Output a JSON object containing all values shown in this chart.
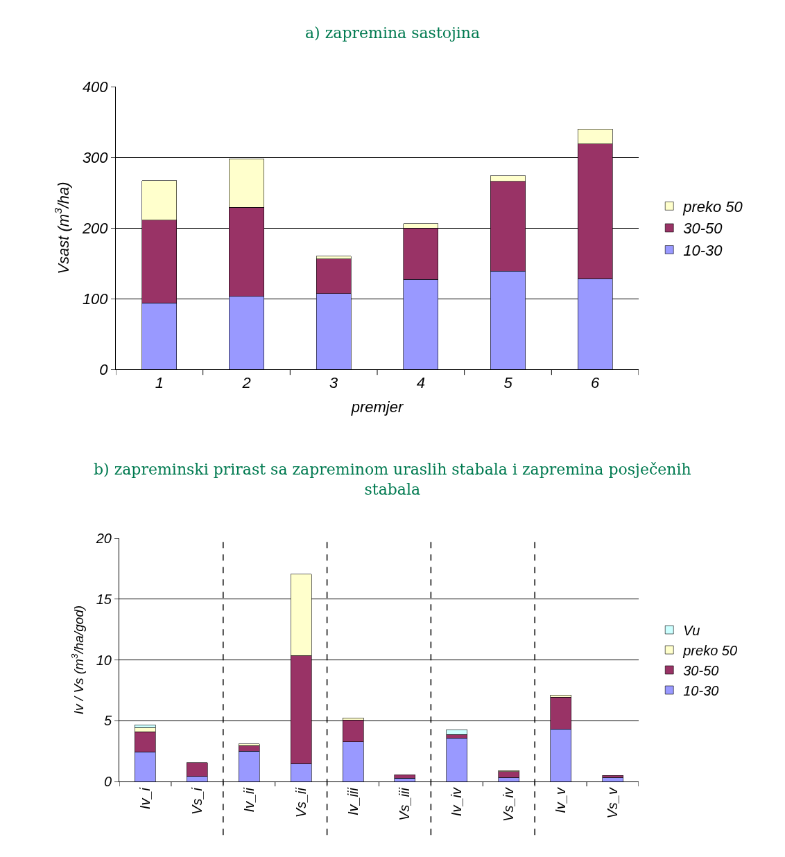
{
  "chart_data": [
    {
      "type": "bar",
      "title": "a) zapremina sastojina",
      "xlabel": "premjer",
      "ylabel": "Vsast (m$^{3}$/ha)",
      "categories": [
        "1",
        "2",
        "3",
        "4",
        "5",
        "6"
      ],
      "stacked": true,
      "ylim": [
        0,
        400
      ],
      "yticks": [
        0,
        100,
        200,
        300,
        400
      ],
      "grid": "y",
      "legend": "right",
      "series": [
        {
          "name": "10-30",
          "color": "#9999ff",
          "values": [
            94,
            103,
            107,
            127,
            139,
            128
          ]
        },
        {
          "name": "30-50",
          "color": "#993366",
          "values": [
            117,
            126,
            49,
            73,
            127,
            191
          ]
        },
        {
          "name": "preko 50",
          "color": "#ffffcc",
          "values": [
            56,
            69,
            4,
            6,
            8,
            21
          ]
        }
      ]
    },
    {
      "type": "bar",
      "title": "b) zapreminski prirast sa zapreminom uraslih stabala i zapremina posječenih stabala",
      "ylabel": "Iv / Vs (m$^{3}$/ha/god)",
      "categories": [
        "Iv_i",
        "Vs_i",
        "Iv_ii",
        "Vs_ii",
        "Iv_iii",
        "Vs_iii",
        "Iv_iv",
        "Vs_iv",
        "Iv_v",
        "Vs_v"
      ],
      "stacked": true,
      "ylim": [
        0,
        20
      ],
      "yticks": [
        0,
        5,
        10,
        15,
        20
      ],
      "grid": "y",
      "legend": "right",
      "series": [
        {
          "name": "10-30",
          "color": "#9999ff",
          "values": [
            2.45,
            0.4,
            2.5,
            1.48,
            3.25,
            0.28,
            3.59,
            0.34,
            4.33,
            0.34
          ]
        },
        {
          "name": "30-50",
          "color": "#993366",
          "values": [
            1.65,
            1.14,
            0.46,
            8.89,
            1.82,
            0.29,
            0.28,
            0.46,
            2.62,
            0.17
          ]
        },
        {
          "name": "preko 50",
          "color": "#ffffcc",
          "values": [
            0.34,
            null,
            0.12,
            6.67,
            0.17,
            null,
            null,
            0.11,
            0.17,
            null
          ]
        },
        {
          "name": "Vu",
          "color": "#ccffff",
          "values": [
            0.23,
            null,
            null,
            null,
            null,
            null,
            0.4,
            null,
            null,
            null
          ]
        }
      ]
    }
  ]
}
